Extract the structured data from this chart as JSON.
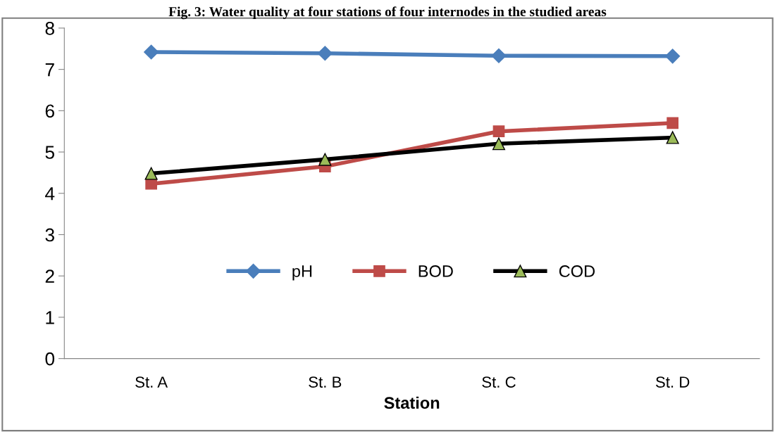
{
  "chart_data": {
    "type": "line",
    "title": "Fig. 3: Water quality at four stations of four internodes in the studied areas",
    "xlabel": "Station",
    "categories": [
      "St. A",
      "St. B",
      "St. C",
      "St. D"
    ],
    "series": [
      {
        "name": "pH",
        "color": "#4a7ebb",
        "marker": "diamond",
        "values": [
          7.42,
          7.39,
          7.33,
          7.32
        ]
      },
      {
        "name": "BOD",
        "color": "#be4b48",
        "marker": "square",
        "values": [
          4.23,
          4.65,
          5.5,
          5.7
        ]
      },
      {
        "name": "COD",
        "color": "#000000",
        "marker": "triangle",
        "values": [
          4.48,
          4.82,
          5.2,
          5.35
        ]
      }
    ],
    "ylim": [
      0,
      8
    ],
    "yticks": [
      0,
      1,
      2,
      3,
      4,
      5,
      6,
      7,
      8
    ],
    "grid": false,
    "legend": "center",
    "line_style": "solid"
  }
}
